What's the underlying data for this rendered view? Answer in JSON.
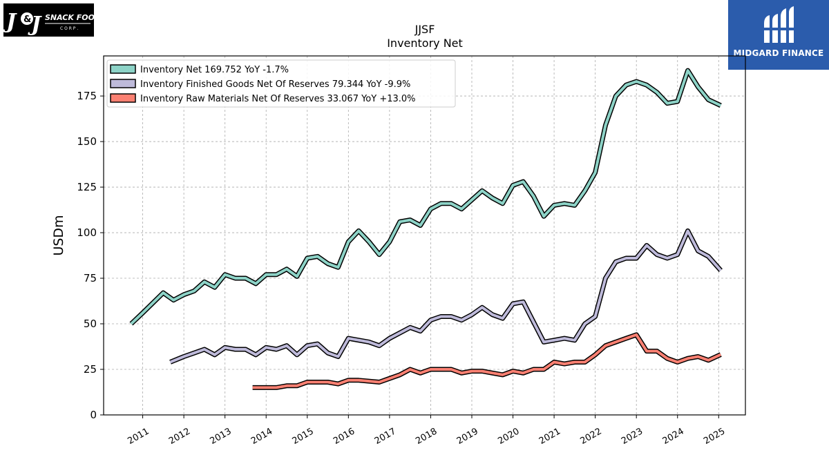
{
  "logos": {
    "left_text": "J&J SNACK FOODS CORP.",
    "right_text": "MIDGARD FINANCE"
  },
  "colors": {
    "inventory_net": "#8dd3c7",
    "finished_goods": "#bebada",
    "raw_materials": "#fb8072",
    "outline": "#000000",
    "brand_blue": "#2b5cac"
  },
  "chart_data": {
    "type": "line",
    "title": "JJSF",
    "subtitle": "Inventory Net",
    "xlabel": "",
    "ylabel": "USDm",
    "ylim": [
      0,
      197
    ],
    "yticks": [
      0,
      25,
      50,
      75,
      100,
      125,
      150,
      175
    ],
    "xlim": [
      2010.05,
      2025.65
    ],
    "xticks": [
      "2011",
      "2012",
      "2013",
      "2014",
      "2015",
      "2016",
      "2017",
      "2018",
      "2019",
      "2020",
      "2021",
      "2022",
      "2023",
      "2024",
      "2025"
    ],
    "grid": true,
    "legend_position": "top-left",
    "series": [
      {
        "name": "Inventory Net",
        "legend": "Inventory Net  169.752 YoY -1.7%",
        "color": "#8dd3c7",
        "points": [
          [
            2010.72,
            50
          ],
          [
            2011.0,
            56
          ],
          [
            2011.5,
            67
          ],
          [
            2011.75,
            63
          ],
          [
            2012.0,
            66
          ],
          [
            2012.25,
            68
          ],
          [
            2012.5,
            73
          ],
          [
            2012.75,
            70
          ],
          [
            2013.0,
            77
          ],
          [
            2013.25,
            75
          ],
          [
            2013.5,
            75
          ],
          [
            2013.75,
            72
          ],
          [
            2014.0,
            77
          ],
          [
            2014.25,
            77
          ],
          [
            2014.5,
            80
          ],
          [
            2014.75,
            76
          ],
          [
            2015.0,
            86
          ],
          [
            2015.25,
            87
          ],
          [
            2015.5,
            83
          ],
          [
            2015.75,
            81
          ],
          [
            2016.0,
            95
          ],
          [
            2016.25,
            101
          ],
          [
            2016.5,
            95
          ],
          [
            2016.75,
            88
          ],
          [
            2017.0,
            95
          ],
          [
            2017.25,
            106
          ],
          [
            2017.5,
            107
          ],
          [
            2017.75,
            104
          ],
          [
            2018.0,
            113
          ],
          [
            2018.25,
            116
          ],
          [
            2018.5,
            116
          ],
          [
            2018.75,
            113
          ],
          [
            2019.0,
            118
          ],
          [
            2019.25,
            123
          ],
          [
            2019.5,
            119
          ],
          [
            2019.75,
            116
          ],
          [
            2020.0,
            126
          ],
          [
            2020.25,
            128
          ],
          [
            2020.5,
            120
          ],
          [
            2020.75,
            109
          ],
          [
            2021.0,
            115
          ],
          [
            2021.25,
            116
          ],
          [
            2021.5,
            115
          ],
          [
            2021.75,
            123
          ],
          [
            2022.0,
            133
          ],
          [
            2022.25,
            159
          ],
          [
            2022.5,
            175
          ],
          [
            2022.75,
            181
          ],
          [
            2023.0,
            183
          ],
          [
            2023.25,
            181
          ],
          [
            2023.5,
            177
          ],
          [
            2023.75,
            171
          ],
          [
            2024.0,
            172
          ],
          [
            2024.25,
            189
          ],
          [
            2024.5,
            180
          ],
          [
            2024.75,
            173
          ],
          [
            2025.05,
            169.8
          ]
        ]
      },
      {
        "name": "Inventory Finished Goods Net Of Reserves",
        "legend": "Inventory Finished Goods Net Of Reserves  79.344 YoY -9.9%",
        "color": "#bebada",
        "points": [
          [
            2011.67,
            29
          ],
          [
            2012.0,
            32
          ],
          [
            2012.25,
            34
          ],
          [
            2012.5,
            36
          ],
          [
            2012.75,
            33
          ],
          [
            2013.0,
            37
          ],
          [
            2013.25,
            36
          ],
          [
            2013.5,
            36
          ],
          [
            2013.75,
            33
          ],
          [
            2014.0,
            37
          ],
          [
            2014.25,
            36
          ],
          [
            2014.5,
            38
          ],
          [
            2014.75,
            33
          ],
          [
            2015.0,
            38
          ],
          [
            2015.25,
            39
          ],
          [
            2015.5,
            34
          ],
          [
            2015.75,
            32
          ],
          [
            2016.0,
            42
          ],
          [
            2016.5,
            40
          ],
          [
            2016.75,
            38
          ],
          [
            2017.0,
            42
          ],
          [
            2017.5,
            48
          ],
          [
            2017.75,
            46
          ],
          [
            2018.0,
            52
          ],
          [
            2018.25,
            54
          ],
          [
            2018.5,
            54
          ],
          [
            2018.75,
            52
          ],
          [
            2019.0,
            55
          ],
          [
            2019.25,
            59
          ],
          [
            2019.5,
            55
          ],
          [
            2019.75,
            53
          ],
          [
            2020.0,
            61
          ],
          [
            2020.25,
            62
          ],
          [
            2020.5,
            51
          ],
          [
            2020.75,
            40
          ],
          [
            2021.0,
            41
          ],
          [
            2021.25,
            42
          ],
          [
            2021.5,
            41
          ],
          [
            2021.75,
            50
          ],
          [
            2022.0,
            54
          ],
          [
            2022.25,
            75
          ],
          [
            2022.5,
            84
          ],
          [
            2022.75,
            86
          ],
          [
            2023.0,
            86
          ],
          [
            2023.25,
            93
          ],
          [
            2023.5,
            88
          ],
          [
            2023.75,
            86
          ],
          [
            2024.0,
            88
          ],
          [
            2024.25,
            101
          ],
          [
            2024.5,
            90
          ],
          [
            2024.75,
            87
          ],
          [
            2025.05,
            79.3
          ]
        ]
      },
      {
        "name": "Inventory Raw Materials Net Of Reserves",
        "legend": "Inventory Raw Materials Net Of Reserves  33.067 YoY +13.0%",
        "color": "#fb8072",
        "points": [
          [
            2013.67,
            15
          ],
          [
            2014.25,
            15
          ],
          [
            2014.5,
            16
          ],
          [
            2014.75,
            16
          ],
          [
            2015.0,
            18
          ],
          [
            2015.25,
            18
          ],
          [
            2015.5,
            18
          ],
          [
            2015.75,
            17
          ],
          [
            2016.0,
            19
          ],
          [
            2016.25,
            19
          ],
          [
            2016.75,
            18
          ],
          [
            2017.0,
            20
          ],
          [
            2017.25,
            22
          ],
          [
            2017.5,
            25
          ],
          [
            2017.75,
            23
          ],
          [
            2018.0,
            25
          ],
          [
            2018.25,
            25
          ],
          [
            2018.5,
            25
          ],
          [
            2018.75,
            23
          ],
          [
            2019.0,
            24
          ],
          [
            2019.25,
            24
          ],
          [
            2019.5,
            23
          ],
          [
            2019.75,
            22
          ],
          [
            2020.0,
            24
          ],
          [
            2020.25,
            23
          ],
          [
            2020.5,
            25
          ],
          [
            2020.75,
            25
          ],
          [
            2021.0,
            29
          ],
          [
            2021.25,
            28
          ],
          [
            2021.5,
            29
          ],
          [
            2021.75,
            29
          ],
          [
            2022.0,
            33
          ],
          [
            2022.25,
            38
          ],
          [
            2022.5,
            40
          ],
          [
            2022.75,
            42
          ],
          [
            2023.0,
            44
          ],
          [
            2023.25,
            35
          ],
          [
            2023.5,
            35
          ],
          [
            2023.75,
            31
          ],
          [
            2024.0,
            29
          ],
          [
            2024.25,
            31
          ],
          [
            2024.5,
            32
          ],
          [
            2024.75,
            30
          ],
          [
            2025.05,
            33.1
          ]
        ]
      }
    ]
  }
}
